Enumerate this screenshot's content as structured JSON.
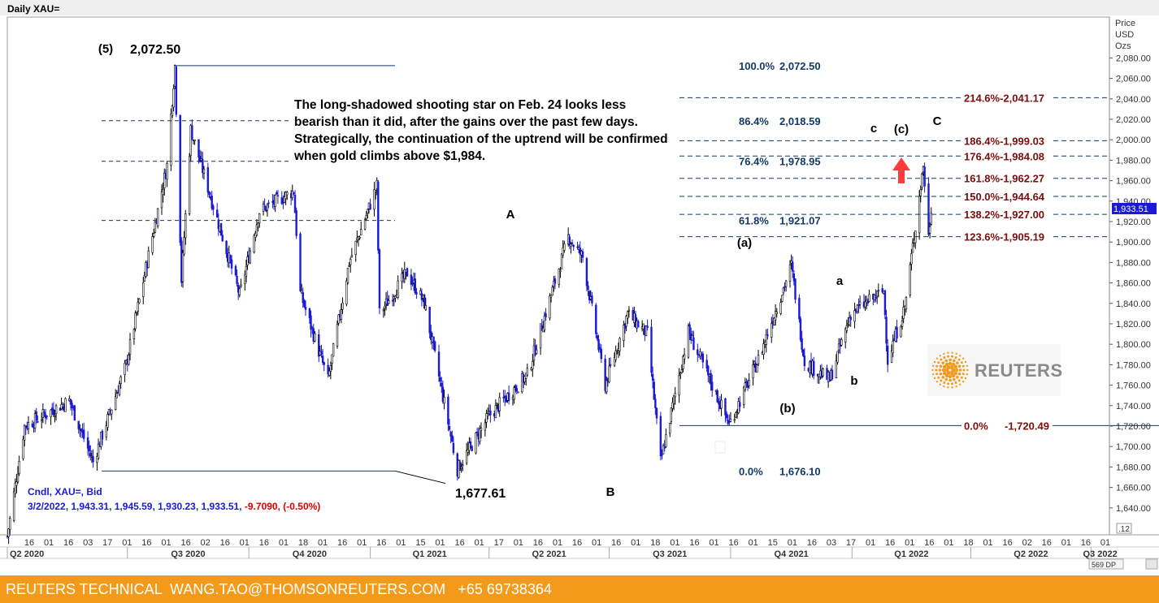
{
  "window_title": "Daily XAU=",
  "axis": {
    "price_header": [
      "Price",
      "USD",
      "Ozs"
    ],
    "y_min": 1626,
    "y_max": 2096,
    "y_ticks": [
      2080,
      2060,
      2040,
      2020,
      2000,
      1980,
      1960,
      1940,
      1920,
      1900,
      1880,
      1860,
      1840,
      1820,
      1800,
      1780,
      1760,
      1740,
      1720,
      1700,
      1680,
      1660,
      1640
    ],
    "y_tick_labels": [
      "2,080.00",
      "2,060.00",
      "2,040.00",
      "2,020.00",
      "2,000.00",
      "1,980.00",
      "1,960.00",
      "1,940.00",
      "1,920.00",
      "1,900.00",
      "1,880.00",
      "1,860.00",
      "1,840.00",
      "1,820.00",
      "1,800.00",
      "1,780.00",
      "1,760.00",
      "1,740.00",
      "1,720.00",
      "1,700.00",
      "1,680.00",
      "1,660.00",
      "1,640.00"
    ],
    "last_price_label": "1,933.51",
    "scale_label": ".12",
    "day_labels": [
      "16",
      "01",
      "16",
      "03",
      "17",
      "01",
      "16",
      "01",
      "16",
      "02",
      "16",
      "01",
      "16",
      "01",
      "18",
      "01",
      "16",
      "01",
      "16",
      "01",
      "15",
      "01",
      "16",
      "01",
      "17",
      "01",
      "16",
      "01",
      "16",
      "01",
      "16",
      "01",
      "18",
      "01",
      "16",
      "01",
      "16",
      "01",
      "15",
      "01",
      "16",
      "03",
      "17",
      "01",
      "16",
      "01",
      "16",
      "01",
      "18",
      "01",
      "16",
      "02",
      "16",
      "01",
      "16",
      "01"
    ],
    "quarter_labels": [
      "Q2 2020",
      "Q3 2020",
      "Q4 2020",
      "Q1 2021",
      "Q2 2021",
      "Q3 2021",
      "Q4 2021",
      "Q1 2022",
      "Q2 2022",
      "Q3 2022"
    ],
    "zoom_label": "569 DP"
  },
  "chart_data": {
    "type": "candlestick",
    "instrument": "XAU=",
    "interval": "Daily",
    "x_range": [
      "2020-04-01",
      "2022-07-15"
    ],
    "path": [
      [
        "2020-04-01",
        1612
      ],
      [
        "2020-04-14",
        1720
      ],
      [
        "2020-05-18",
        1745
      ],
      [
        "2020-06-05",
        1685
      ],
      [
        "2020-06-30",
        1780
      ],
      [
        "2020-07-31",
        1975
      ],
      [
        "2020-08-06",
        2072.5
      ],
      [
        "2020-08-11",
        1863
      ],
      [
        "2020-08-18",
        2010
      ],
      [
        "2020-09-24",
        1848
      ],
      [
        "2020-10-09",
        1930
      ],
      [
        "2020-11-04",
        1950
      ],
      [
        "2020-11-09",
        1850
      ],
      [
        "2020-11-30",
        1765
      ],
      [
        "2020-12-16",
        1880
      ],
      [
        "2021-01-06",
        1955
      ],
      [
        "2021-01-08",
        1830
      ],
      [
        "2021-01-29",
        1870
      ],
      [
        "2021-02-11",
        1840
      ],
      [
        "2021-03-08",
        1677.61
      ],
      [
        "2021-04-01",
        1730
      ],
      [
        "2021-04-30",
        1770
      ],
      [
        "2021-05-31",
        1905
      ],
      [
        "2021-06-11",
        1885
      ],
      [
        "2021-06-28",
        1760
      ],
      [
        "2021-07-15",
        1830
      ],
      [
        "2021-07-30",
        1810
      ],
      [
        "2021-08-09",
        1685
      ],
      [
        "2021-08-30",
        1812
      ],
      [
        "2021-09-30",
        1722
      ],
      [
        "2021-10-22",
        1785
      ],
      [
        "2021-11-16",
        1877
      ],
      [
        "2021-11-26",
        1783
      ],
      [
        "2021-12-15",
        1765
      ],
      [
        "2021-12-31",
        1830
      ],
      [
        "2022-01-25",
        1852
      ],
      [
        "2022-01-28",
        1785
      ],
      [
        "2022-02-10",
        1836
      ],
      [
        "2022-02-24",
        1975
      ],
      [
        "2022-02-28",
        1905
      ],
      [
        "2022-03-02",
        1933.51
      ]
    ],
    "last_bar": {
      "date": "3/2/2022",
      "open": 1943.31,
      "high": 1945.59,
      "low": 1930.23,
      "close": 1933.51,
      "change": -9.709,
      "change_pct": -0.5
    },
    "indicator_line": {
      "prefix": "3/2/2022, 1,943.31, 1,945.59, 1,930.23, 1,933.51, ",
      "change": "-9.7090, (-0.50%)"
    },
    "legend": "Cndl, XAU=, Bid",
    "retracement_levels": [
      {
        "pct": "100.0%",
        "price": "2,072.50",
        "value": 2072.5
      },
      {
        "pct": "86.4%",
        "price": "2,018.59",
        "value": 2018.59
      },
      {
        "pct": "76.4%",
        "price": "1,978.95",
        "value": 1978.95
      },
      {
        "pct": "61.8%",
        "price": "1,921.07",
        "value": 1921.07
      },
      {
        "pct": "0.0%",
        "price": "1,676.10",
        "value": 1676.1
      }
    ],
    "extension_levels": [
      {
        "label": "214.6%-2,041.17",
        "value": 2041.17
      },
      {
        "label": "186.4%-1,999.03",
        "value": 1999.03
      },
      {
        "label": "176.4%-1,984.08",
        "value": 1984.08
      },
      {
        "label": "161.8%-1,962.27",
        "value": 1962.27
      },
      {
        "label": "150.0%-1,944.64",
        "value": 1944.64
      },
      {
        "label": "138.2%-1,927.00",
        "value": 1927.0
      },
      {
        "label": "123.6%-1,905.19",
        "value": 1905.19
      }
    ],
    "base_level": {
      "pct": "0.0%",
      "price": "-1,720.49",
      "value": 1720.49
    },
    "wave_labels": {
      "w5": "(5)",
      "a_upper": "A",
      "b_upper": "B",
      "c_upper": "C",
      "a_paren": "(a)",
      "b_paren": "(b)",
      "c_paren": "(c)",
      "a_lower": "a",
      "b_lower": "b",
      "c_lower": "c"
    },
    "price_annotations": {
      "peak": "2,072.50",
      "low": "1,677.61"
    },
    "commentary": "The long-shadowed shooting star on Feb. 24 looks less bearish than it did, after the gains over the past few days. Strategically, the continuation of the uptrend will be confirmed when gold climbs above $1,984."
  },
  "logo": {
    "text": "REUTERS"
  },
  "footer": {
    "text": "REUTERS TECHNICAL  WANG.TAO@THOMSONREUTERS.COM   +65 69738364"
  },
  "colors": {
    "candles": "#1a1ad6",
    "fib_lines": "#123a66",
    "ext_labels": "#7a0d0d",
    "arrow": "#ff3b3b",
    "footer": "#f39a1a",
    "logo_dots": "#f29b21"
  }
}
